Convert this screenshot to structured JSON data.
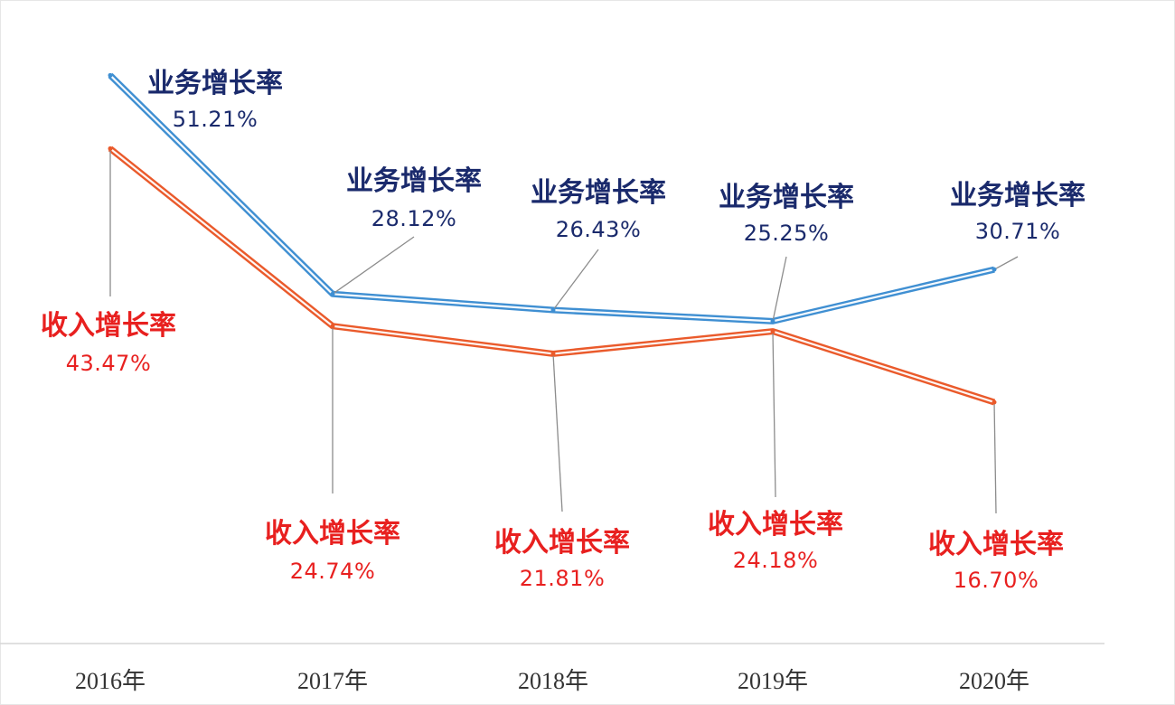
{
  "chart_data": {
    "type": "line",
    "categories": [
      "2016年",
      "2017年",
      "2018年",
      "2019年",
      "2020年"
    ],
    "grid": false,
    "series": [
      {
        "name": "业务增长率",
        "values": [
          51.21,
          28.12,
          26.43,
          25.25,
          30.71
        ],
        "color": "#3f8fd2",
        "label_color": "#1a2a6c",
        "data_labels": [
          "51.21%",
          "28.12%",
          "26.43%",
          "25.25%",
          "30.71%"
        ]
      },
      {
        "name": "收入增长率",
        "values": [
          43.47,
          24.74,
          21.81,
          24.18,
          16.7
        ],
        "color": "#ea5a2b",
        "label_color": "#e8201f",
        "data_labels": [
          "43.47%",
          "24.74%",
          "21.81%",
          "24.18%",
          "16.70%"
        ]
      }
    ]
  }
}
